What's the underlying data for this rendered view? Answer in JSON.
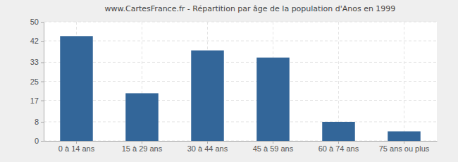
{
  "chart_data": {
    "type": "bar",
    "title": "www.CartesFrance.fr - Répartition par âge de la population d'Anos en 1999",
    "categories": [
      "0 à 14 ans",
      "15 à 29 ans",
      "30 à 44 ans",
      "45 à 59 ans",
      "60 à 74 ans",
      "75 ans ou plus"
    ],
    "values": [
      44,
      20,
      38,
      35,
      8,
      4
    ],
    "color": "#336699",
    "ylim": [
      0,
      50
    ],
    "yticks": [
      0,
      8,
      17,
      25,
      33,
      42,
      50
    ],
    "grid": true
  }
}
